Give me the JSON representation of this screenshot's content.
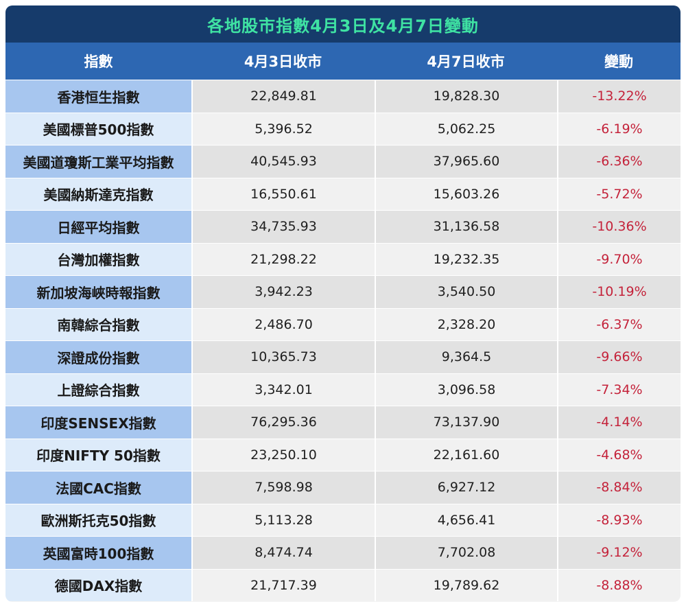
{
  "title": "各地股市指數4月3日及4月7日變動",
  "colors": {
    "title_bg": "#163b6b",
    "title_text": "#3fe3a3",
    "header_bg": "#2d67b2",
    "name_cell_dark": "#a7c6ef",
    "name_cell_light": "#ddebfa",
    "negative_text": "#c4223a"
  },
  "chart_data": {
    "type": "table",
    "title": "各地股市指數4月3日及4月7日變動",
    "columns": [
      "指數",
      "4月3日收市",
      "4月7日收市",
      "變動"
    ],
    "rows": [
      [
        "香港恒生指數",
        "22,849.81",
        "19,828.30",
        "-13.22%"
      ],
      [
        "美國標普500指數",
        "5,396.52",
        "5,062.25",
        "-6.19%"
      ],
      [
        "美國道瓊斯工業平均指數",
        "40,545.93",
        "37,965.60",
        "-6.36%"
      ],
      [
        "美國納斯達克指數",
        "16,550.61",
        "15,603.26",
        "-5.72%"
      ],
      [
        "日經平均指數",
        "34,735.93",
        "31,136.58",
        "-10.36%"
      ],
      [
        "台灣加權指數",
        "21,298.22",
        "19,232.35",
        "-9.70%"
      ],
      [
        "新加坡海峽時報指數",
        "3,942.23",
        "3,540.50",
        "-10.19%"
      ],
      [
        "南韓綜合指數",
        "2,486.70",
        "2,328.20",
        "-6.37%"
      ],
      [
        "深證成份指數",
        "10,365.73",
        "9,364.5",
        "-9.66%"
      ],
      [
        "上證綜合指數",
        "3,342.01",
        "3,096.58",
        "-7.34%"
      ],
      [
        "印度SENSEX指數",
        "76,295.36",
        "73,137.90",
        "-4.14%"
      ],
      [
        "印度NIFTY 50指數",
        "23,250.10",
        "22,161.60",
        "-4.68%"
      ],
      [
        "法國CAC指數",
        "7,598.98",
        "6,927.12",
        "-8.84%"
      ],
      [
        "歐洲斯托克50指數",
        "5,113.28",
        "4,656.41",
        "-8.93%"
      ],
      [
        "英國富時100指數",
        "8,474.74",
        "7,702.08",
        "-9.12%"
      ],
      [
        "德國DAX指數",
        "21,717.39",
        "19,789.62",
        "-8.88%"
      ]
    ]
  }
}
